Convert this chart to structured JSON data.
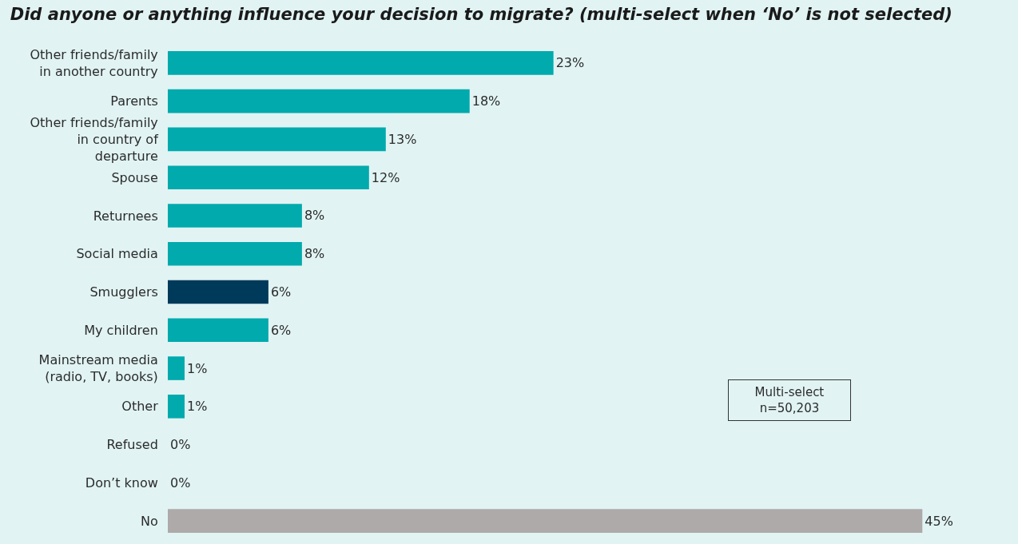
{
  "chart_data": {
    "type": "bar",
    "orientation": "horizontal",
    "title": "Did anyone or anything influence your decision to migrate? (multi-select when ‘No’ is not selected)",
    "categories": [
      "Other friends/family in another country",
      "Parents",
      "Other friends/family in country of departure",
      "Spouse",
      "Returnees",
      "Social media",
      "Smugglers",
      "My children",
      "Mainstream media (radio, TV, books)",
      "Other",
      "Refused",
      "Don’t know",
      "No"
    ],
    "values": [
      23,
      18,
      13,
      12,
      8,
      8,
      6,
      6,
      1,
      1,
      0,
      0,
      45
    ],
    "value_labels": [
      "23%",
      "18%",
      "13%",
      "12%",
      "8%",
      "8%",
      "6%",
      "6%",
      "1%",
      "1%",
      "0%",
      "0%",
      "45%"
    ],
    "colors": [
      "#00aaad",
      "#00aaad",
      "#00aaad",
      "#00aaad",
      "#00aaad",
      "#00aaad",
      "#003a5a",
      "#00aaad",
      "#00aaad",
      "#00aaad",
      "#00aaad",
      "#00aaad",
      "#aeaaaa"
    ],
    "annotations": [
      "Multi-select\nn=50,203"
    ]
  }
}
